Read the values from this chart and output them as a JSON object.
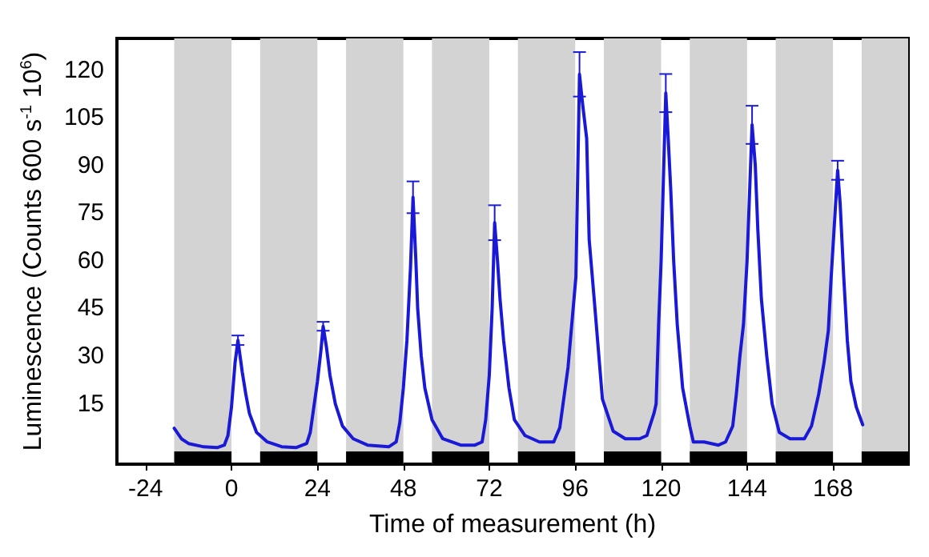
{
  "chart_data": {
    "type": "line",
    "xlabel": "Time of measurement (h)",
    "ylabel": "Luminescence (Counts 600 s$^{-1}$ 10$^{6}$)",
    "xlim": [
      -32,
      189
    ],
    "xticks": [
      -24,
      0,
      24,
      48,
      72,
      96,
      120,
      144,
      168
    ],
    "ylim": [
      -4,
      130
    ],
    "yticks": [
      15,
      30,
      45,
      60,
      75,
      90,
      105,
      120
    ],
    "grid": false,
    "marker": "none",
    "line_style": "solid",
    "bands": [
      {
        "axis": "x",
        "from": -16,
        "to": 0,
        "color": "#d3d3d3"
      },
      {
        "axis": "x",
        "from": 8,
        "to": 24,
        "color": "#d3d3d3"
      },
      {
        "axis": "x",
        "from": 32,
        "to": 48,
        "color": "#d3d3d3"
      },
      {
        "axis": "x",
        "from": 56,
        "to": 72,
        "color": "#d3d3d3"
      },
      {
        "axis": "x",
        "from": 80,
        "to": 96,
        "color": "#d3d3d3"
      },
      {
        "axis": "x",
        "from": 104,
        "to": 120,
        "color": "#d3d3d3"
      },
      {
        "axis": "x",
        "from": 128,
        "to": 144,
        "color": "#d3d3d3"
      },
      {
        "axis": "x",
        "from": 152,
        "to": 168,
        "color": "#d3d3d3"
      },
      {
        "axis": "x",
        "from": 176,
        "to": 189,
        "color": "#d3d3d3"
      }
    ],
    "series": [
      {
        "color": "#1a1ad6",
        "x": [
          -16,
          -14,
          -12,
          -8,
          -4,
          -2,
          -1,
          0,
          1,
          1.8,
          3,
          4,
          5,
          7,
          10,
          14,
          18,
          21,
          22,
          23,
          24,
          25,
          25.6,
          26.5,
          27.5,
          29,
          31,
          34,
          38,
          44,
          46,
          47,
          48,
          49,
          50,
          50.7,
          51.5,
          52,
          53,
          54,
          56,
          59,
          64,
          68,
          70,
          71,
          72,
          72.8,
          73.5,
          74.3,
          75,
          76,
          77.5,
          79,
          82,
          86,
          90,
          91.7,
          94,
          96.2,
          97.2,
          98,
          99.2,
          99.9,
          101.4,
          103.6,
          106.6,
          110,
          114,
          116,
          118,
          118.6,
          119.3,
          120,
          121.3,
          122,
          122.7,
          123.5,
          124.5,
          126,
          128,
          129,
          132,
          136,
          138,
          140,
          141,
          142,
          143,
          144,
          145.4,
          146.3,
          147,
          148,
          149.5,
          151,
          153,
          156,
          160,
          162,
          164,
          165.5,
          166.7,
          167.5,
          169.3,
          170,
          171,
          172,
          173,
          174.5,
          176.3
        ],
        "values": [
          7.3,
          4,
          2.5,
          1.5,
          1.2,
          2,
          5,
          14,
          28,
          35,
          25,
          18,
          12,
          6,
          3,
          1.5,
          1.2,
          2.5,
          6,
          14,
          22,
          32,
          39.4,
          33,
          24,
          15,
          8,
          4,
          2,
          1.5,
          3,
          9,
          20,
          35,
          58,
          80,
          60,
          45,
          30,
          20,
          10,
          4,
          2,
          2,
          3,
          10,
          24,
          45,
          72,
          60,
          48,
          35,
          20,
          10,
          5,
          3,
          3,
          7.5,
          26.5,
          55,
          118.7,
          110,
          98.5,
          66.7,
          46.6,
          16.5,
          6.4,
          4,
          4,
          5,
          12,
          15,
          40,
          60,
          112.8,
          98,
          82,
          60,
          40,
          20,
          8,
          3,
          3,
          2,
          3,
          8,
          18,
          30,
          40,
          60,
          102.8,
          90,
          70,
          48,
          30,
          15,
          6,
          4,
          4,
          8,
          18,
          28,
          38,
          55,
          88.5,
          78,
          55,
          35,
          22,
          14,
          8.4
        ],
        "errors": [
          null,
          null,
          null,
          null,
          null,
          null,
          null,
          null,
          null,
          1.5,
          null,
          null,
          null,
          null,
          null,
          null,
          null,
          null,
          null,
          null,
          null,
          null,
          1.4,
          null,
          null,
          null,
          null,
          null,
          null,
          null,
          null,
          null,
          null,
          null,
          null,
          5,
          null,
          null,
          null,
          null,
          null,
          null,
          null,
          null,
          null,
          null,
          null,
          null,
          5.5,
          null,
          null,
          null,
          null,
          null,
          null,
          null,
          null,
          null,
          null,
          null,
          7,
          null,
          null,
          null,
          null,
          null,
          null,
          null,
          null,
          null,
          null,
          null,
          null,
          null,
          6,
          null,
          null,
          null,
          null,
          null,
          null,
          null,
          null,
          null,
          null,
          null,
          null,
          null,
          null,
          null,
          6,
          null,
          null,
          null,
          null,
          null,
          null,
          null,
          null,
          null,
          null,
          null,
          null,
          null,
          3,
          null,
          null,
          null,
          null,
          null,
          null
        ]
      }
    ]
  }
}
